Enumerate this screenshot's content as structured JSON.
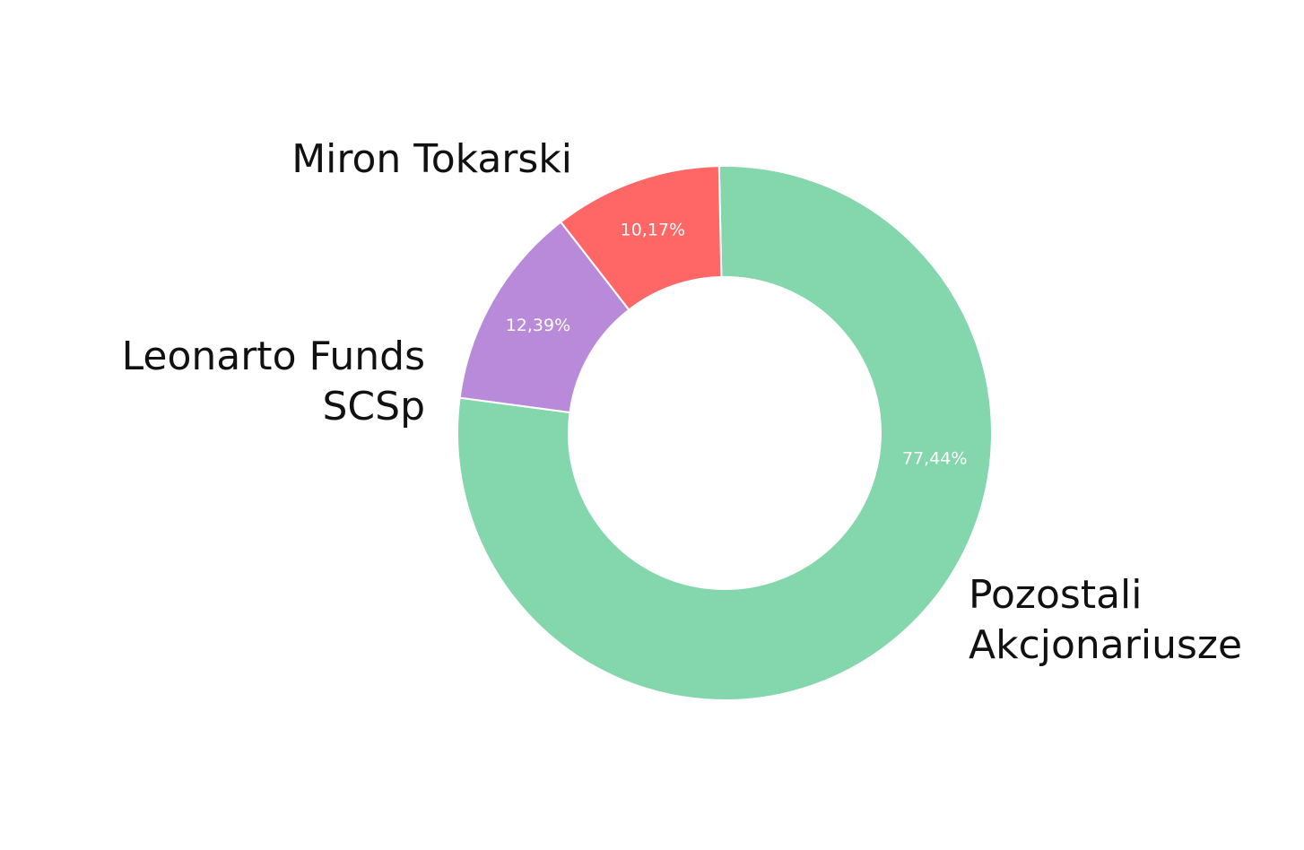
{
  "chart_data": {
    "type": "donut",
    "categories": [
      "Pozostali Akcjonariusze",
      "Leonarto Funds SCSp",
      "Miron Tokarski"
    ],
    "values": [
      77.44,
      12.39,
      10.17
    ],
    "value_labels": [
      "77,44%",
      "12,39%",
      "10,17%"
    ],
    "colors": [
      "#84d6ac",
      "#b88ad9",
      "#ff6666"
    ]
  }
}
